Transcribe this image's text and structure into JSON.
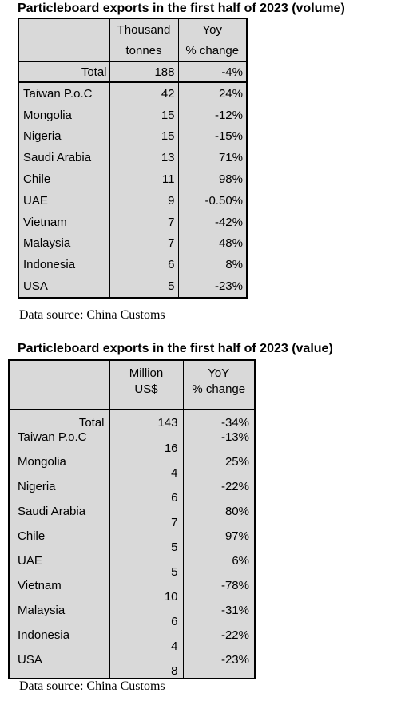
{
  "volume": {
    "title": "Particleboard exports in the first half of 2023 (volume)",
    "col2_header": [
      "Thousand",
      "tonnes"
    ],
    "col3_header": [
      "Yoy",
      "% change"
    ],
    "total": {
      "label": "Total",
      "value": "188",
      "change": "-4%"
    },
    "rows": [
      {
        "country": "Taiwan P.o.C",
        "value": "42",
        "change": "24%"
      },
      {
        "country": "Mongolia",
        "value": "15",
        "change": "-12%"
      },
      {
        "country": "Nigeria",
        "value": "15",
        "change": "-15%"
      },
      {
        "country": "Saudi Arabia",
        "value": "13",
        "change": "71%"
      },
      {
        "country": "Chile",
        "value": "11",
        "change": "98%"
      },
      {
        "country": "UAE",
        "value": "9",
        "change": "-0.50%"
      },
      {
        "country": "Vietnam",
        "value": "7",
        "change": "-42%"
      },
      {
        "country": "Malaysia",
        "value": "7",
        "change": "48%"
      },
      {
        "country": "Indonesia",
        "value": "6",
        "change": "8%"
      },
      {
        "country": "USA",
        "value": "5",
        "change": "-23%"
      }
    ],
    "source": "Data source: China Customs"
  },
  "value": {
    "title": "Particleboard exports in the first half of 2023 (value)",
    "col2_header": [
      "Million",
      "US$"
    ],
    "col3_header": [
      "YoY",
      "% change"
    ],
    "total": {
      "label": "Total",
      "value": "143",
      "change": "-34%"
    },
    "rows": [
      {
        "country": "Taiwan P.o.C",
        "value": "16",
        "change": "-13%"
      },
      {
        "country": "Mongolia",
        "value": "4",
        "change": "25%"
      },
      {
        "country": "Nigeria",
        "value": "6",
        "change": "-22%"
      },
      {
        "country": "Saudi Arabia",
        "value": "7",
        "change": "80%"
      },
      {
        "country": "Chile",
        "value": "5",
        "change": "97%"
      },
      {
        "country": "UAE",
        "value": "5",
        "change": "6%"
      },
      {
        "country": "Vietnam",
        "value": "10",
        "change": "-78%"
      },
      {
        "country": "Malaysia",
        "value": "6",
        "change": "-31%"
      },
      {
        "country": "Indonesia",
        "value": "4",
        "change": "-22%"
      },
      {
        "country": "USA",
        "value": "8",
        "change": "-23%"
      }
    ],
    "source": "Data source: China Customs"
  },
  "colors": {
    "table_bg": "#d9d9d9",
    "border": "#000000"
  }
}
